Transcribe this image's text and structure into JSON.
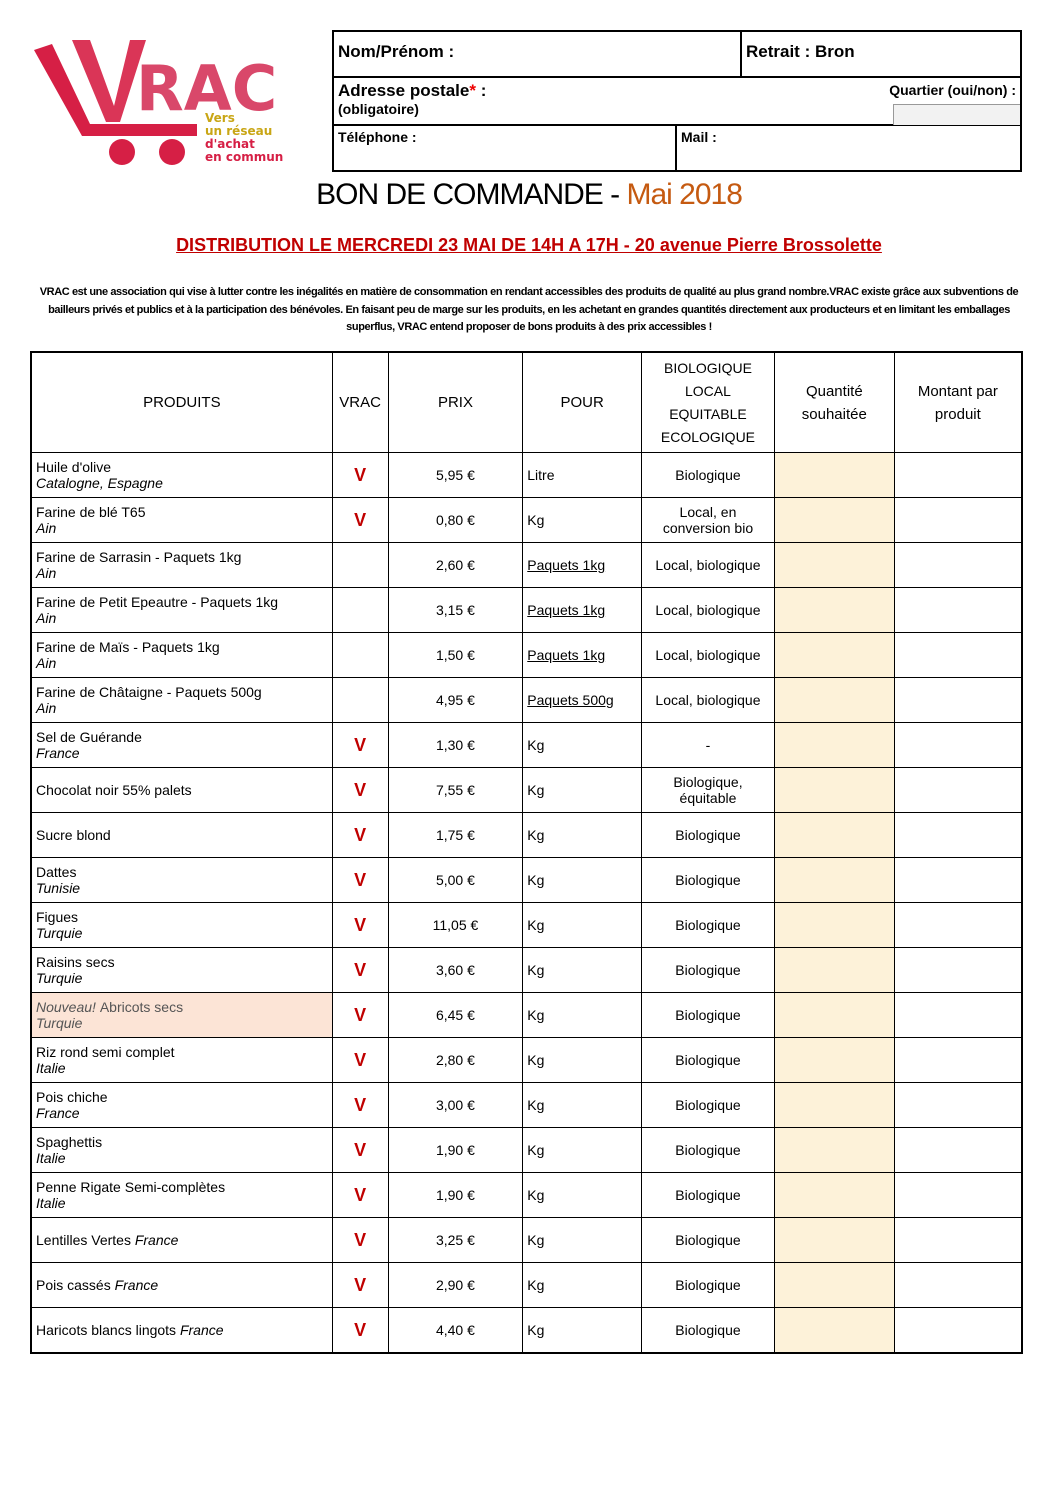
{
  "logo": {
    "text": "VRAC",
    "tagline": [
      "Vers",
      "un réseau",
      "d'achat",
      "en commun"
    ]
  },
  "form": {
    "name": "Nom/Prénom :",
    "pickup": "Retrait : Bron",
    "address": "Adresse postale",
    "required_mark": "*",
    "address_colon": " :",
    "mandatory": "(obligatoire)",
    "district": "Quartier (oui/non) :",
    "phone": "Téléphone :",
    "mail": "Mail :"
  },
  "title": {
    "main": "BON DE COMMANDE - ",
    "month": "Mai 2018"
  },
  "distribution": "DISTRIBUTION LE MERCREDI 23 MAI DE 14H A 17H - 20 avenue Pierre Brossolette",
  "description": "VRAC est une association qui vise à lutter contre les inégalités en matière de consommation en rendant accessibles des produits de qualité au plus grand nombre.VRAC existe grâce aux subventions de bailleurs privés et publics et à la participation des bénévoles. En faisant peu de marge sur les produits, en les achetant en grandes quantités directement aux producteurs et en limitant les emballages superflus, VRAC entend proposer de bons produits à des prix accessibles !",
  "table": {
    "headers": [
      "PRODUITS",
      "VRAC",
      "PRIX",
      "POUR",
      "BIOLOGIQUE LOCAL EQUITABLE ECOLOGIQUE",
      "Quantité souhaitée",
      "Montant par produit"
    ],
    "rows": [
      {
        "name": "Huile d'olive",
        "origin": "Catalogne, Espagne",
        "vrac": "V",
        "price": "5,95 €",
        "unit": "Litre",
        "label": "Biologique"
      },
      {
        "name": "Farine de blé T65",
        "origin": "Ain",
        "vrac": "V",
        "price": "0,80 €",
        "unit": "Kg",
        "label": "Local, en conversion bio"
      },
      {
        "name": "Farine de Sarrasin - Paquets 1kg",
        "origin": "Ain",
        "vrac": "",
        "price": "2,60 €",
        "unit": "Paquets 1kg",
        "label": "Local, biologique"
      },
      {
        "name": "Farine de Petit Epeautre - Paquets 1kg",
        "origin": "Ain",
        "vrac": "",
        "price": "3,15 €",
        "unit": "Paquets 1kg",
        "label": "Local, biologique"
      },
      {
        "name": "Farine de Maïs - Paquets 1kg",
        "origin": "Ain",
        "vrac": "",
        "price": "1,50 €",
        "unit": "Paquets 1kg",
        "label": "Local, biologique"
      },
      {
        "name": "Farine de Châtaigne - Paquets 500g",
        "origin": "Ain",
        "vrac": "",
        "price": "4,95 €",
        "unit": "Paquets 500g",
        "label": "Local, biologique"
      },
      {
        "name": "Sel de Guérande",
        "origin": "France",
        "vrac": "V",
        "price": "1,30 €",
        "unit": "Kg",
        "label": "-"
      },
      {
        "name": "Chocolat noir 55% palets",
        "origin": "",
        "vrac": "V",
        "price": "7,55 €",
        "unit": "Kg",
        "label": "Biologique, équitable"
      },
      {
        "name": "Sucre blond",
        "origin": "",
        "vrac": "V",
        "price": "1,75 €",
        "unit": "Kg",
        "label": "Biologique"
      },
      {
        "name": "Dattes",
        "origin": "Tunisie",
        "vrac": "V",
        "price": "5,00 €",
        "unit": "Kg",
        "label": "Biologique"
      },
      {
        "name": "Figues",
        "origin": "Turquie",
        "vrac": "V",
        "price": "11,05 €",
        "unit": "Kg",
        "label": "Biologique"
      },
      {
        "name": "Raisins secs",
        "origin": "Turquie",
        "vrac": "V",
        "price": "3,60 €",
        "unit": "Kg",
        "label": "Biologique"
      },
      {
        "prefix": "Nouveau! ",
        "name": "Abricots secs",
        "origin": "Turquie",
        "vrac": "V",
        "price": "6,45 €",
        "unit": "Kg",
        "label": "Biologique"
      },
      {
        "name": "Riz rond semi complet",
        "origin": "Italie",
        "vrac": "V",
        "price": "2,80 €",
        "unit": "Kg",
        "label": "Biologique"
      },
      {
        "name": "Pois chiche",
        "origin": "France",
        "vrac": "V",
        "price": "3,00 €",
        "unit": "Kg",
        "label": "Biologique"
      },
      {
        "name": "Spaghettis",
        "origin": "Italie",
        "vrac": "V",
        "price": "1,90 €",
        "unit": "Kg",
        "label": "Biologique"
      },
      {
        "name": "Penne Rigate Semi-complètes",
        "origin": "Italie",
        "vrac": "V",
        "price": "1,90 €",
        "unit": "Kg",
        "label": "Biologique"
      },
      {
        "name": "Lentilles Vertes ",
        "inline_origin": "France",
        "vrac": "V",
        "price": "3,25 €",
        "unit": "Kg",
        "label": "Biologique"
      },
      {
        "name": "Pois cassés ",
        "inline_origin": "France",
        "vrac": "V",
        "price": "2,90 €",
        "unit": "Kg",
        "label": "Biologique"
      },
      {
        "name": "Haricots blancs lingots ",
        "inline_origin": "France",
        "vrac": "V",
        "price": "4,40 €",
        "unit": "Kg",
        "label": "Biologique"
      }
    ]
  },
  "colors": {
    "red": "#c00000",
    "orange": "#c55a11",
    "quantity_bg": "#fdf2d9",
    "new_bg": "#fce4d6"
  }
}
